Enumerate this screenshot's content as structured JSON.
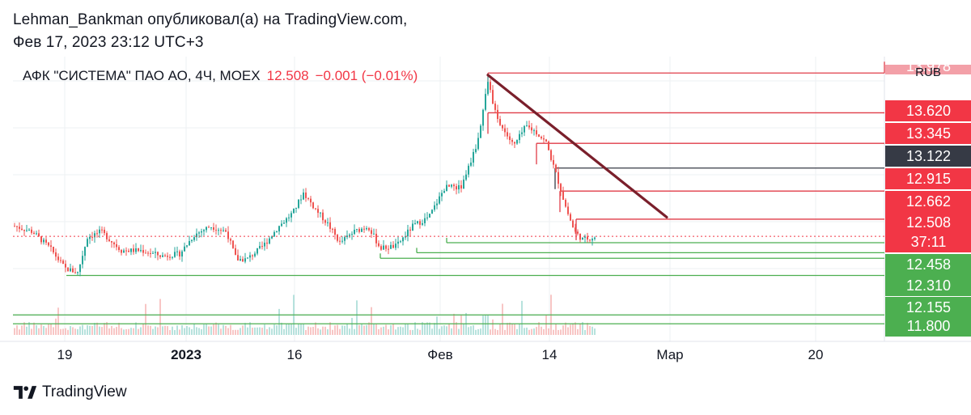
{
  "header": {
    "line1": "Lehman_Bankman опубликовал(а) на TradingView.com,",
    "line2": "Фев 17, 2023 23:12 UTC+3"
  },
  "legend": {
    "symbol": "АФК \"СИСТЕМА\" ПАО АО, 4Ч, MOEX",
    "price": "12.508",
    "change": "−0.001 (−0.01%)"
  },
  "currency": "RUB",
  "footer": {
    "brand": "TradingView",
    "logo_icon": "tradingview-logo-icon"
  },
  "colors": {
    "up": "#26a69a",
    "down": "#ef5350",
    "resistance": "#e03c48",
    "support": "#4caf50",
    "trendline": "#7a1f2b",
    "pivot": "#363a45"
  },
  "chart_data": {
    "type": "candlestick",
    "x_ticks": [
      {
        "label": "19",
        "bold": false
      },
      {
        "label": "2023",
        "bold": true
      },
      {
        "label": "16",
        "bold": false
      },
      {
        "label": "Фев",
        "bold": false
      },
      {
        "label": "14",
        "bold": false
      },
      {
        "label": "Мар",
        "bold": false
      },
      {
        "label": "20",
        "bold": false
      }
    ],
    "y_range": [
      11.78,
      13.98
    ],
    "price_labels": [
      {
        "value": "13.978",
        "role": "cut-off",
        "color": "#f3a0a8"
      },
      {
        "value": "13.620",
        "role": "resistance",
        "color": "#f23645"
      },
      {
        "value": "13.345",
        "role": "resistance",
        "color": "#f23645"
      },
      {
        "value": "13.122",
        "role": "pivot",
        "color": "#363a45"
      },
      {
        "value": "12.915",
        "role": "resistance",
        "color": "#f23645"
      },
      {
        "value": "12.662",
        "role": "resistance",
        "color": "#f23645"
      },
      {
        "value": "12.508",
        "role": "last-price",
        "color": "#f23645"
      },
      {
        "value": "37:11",
        "role": "countdown",
        "color": "#f23645"
      },
      {
        "value": "12.458",
        "role": "support",
        "color": "#4caf50"
      },
      {
        "value": "12.310",
        "role": "support",
        "color": "#4caf50"
      },
      {
        "value": "12.155",
        "role": "support",
        "color": "#4caf50"
      },
      {
        "value": "11.800",
        "role": "support",
        "color": "#4caf50"
      }
    ],
    "horizontal_levels": [
      {
        "price": 13.978,
        "color": "#e03c48"
      },
      {
        "price": 13.62,
        "color": "#e03c48"
      },
      {
        "price": 13.345,
        "color": "#e03c48"
      },
      {
        "price": 13.122,
        "color": "#363a45"
      },
      {
        "price": 12.915,
        "color": "#e03c48"
      },
      {
        "price": 12.662,
        "color": "#e03c48"
      },
      {
        "price": 12.45,
        "color": "#4caf50"
      },
      {
        "price": 12.36,
        "color": "#4caf50"
      },
      {
        "price": 12.31,
        "color": "#4caf50"
      },
      {
        "price": 12.155,
        "color": "#4caf50"
      },
      {
        "price": 11.8,
        "color": "#4caf50"
      },
      {
        "price": 11.72,
        "color": "#4caf50"
      }
    ],
    "trendline": {
      "from_price": 13.96,
      "to_price": 12.68
    },
    "last_price": 12.508
  }
}
